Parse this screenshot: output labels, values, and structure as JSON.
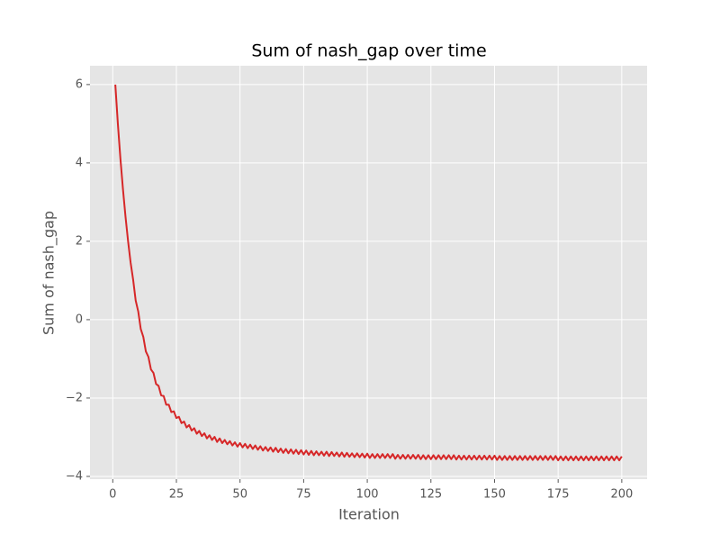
{
  "chart_data": {
    "type": "line",
    "title": "Sum of nash_gap over time",
    "x_label": "Iteration",
    "y_label": "Sum of nash_gap",
    "color": "#d62728",
    "grid": true,
    "xlim": [
      -8.95,
      209.95
    ],
    "ylim": [
      -4.07,
      6.48
    ],
    "xticks": [
      0,
      25,
      50,
      75,
      100,
      125,
      150,
      175,
      200
    ],
    "yticks": [
      {
        "value": -4,
        "label": "−4"
      },
      {
        "value": -2,
        "label": "−2"
      },
      0,
      2,
      4,
      6
    ],
    "x": [
      1,
      2,
      3,
      4,
      5,
      6,
      7,
      8,
      9,
      10,
      11,
      12,
      13,
      14,
      15,
      16,
      17,
      18,
      19,
      20,
      21,
      22,
      23,
      24,
      25,
      26,
      27,
      28,
      29,
      30,
      31,
      32,
      33,
      34,
      35,
      36,
      37,
      38,
      39,
      40,
      41,
      42,
      43,
      44,
      45,
      46,
      47,
      48,
      49,
      50,
      51,
      52,
      53,
      54,
      55,
      56,
      57,
      58,
      59,
      60,
      61,
      62,
      63,
      64,
      65,
      66,
      67,
      68,
      69,
      70,
      71,
      72,
      73,
      74,
      75,
      76,
      77,
      78,
      79,
      80,
      81,
      82,
      83,
      84,
      85,
      86,
      87,
      88,
      89,
      90,
      91,
      92,
      93,
      94,
      95,
      96,
      97,
      98,
      99,
      100,
      101,
      102,
      103,
      104,
      105,
      106,
      107,
      108,
      109,
      110,
      111,
      112,
      113,
      114,
      115,
      116,
      117,
      118,
      119,
      120,
      121,
      122,
      123,
      124,
      125,
      126,
      127,
      128,
      129,
      130,
      131,
      132,
      133,
      134,
      135,
      136,
      137,
      138,
      139,
      140,
      141,
      142,
      143,
      144,
      145,
      146,
      147,
      148,
      149,
      150,
      151,
      152,
      153,
      154,
      155,
      156,
      157,
      158,
      159,
      160,
      161,
      162,
      163,
      164,
      165,
      166,
      167,
      168,
      169,
      170,
      171,
      172,
      173,
      174,
      175,
      176,
      177,
      178,
      179,
      180,
      181,
      182,
      183,
      184,
      185,
      186,
      187,
      188,
      189,
      190,
      191,
      192,
      193,
      194,
      195,
      196,
      197,
      198,
      199,
      200
    ],
    "values": [
      6.0,
      5.0,
      4.11,
      3.33,
      2.63,
      2.01,
      1.46,
      1.02,
      0.49,
      0.21,
      -0.24,
      -0.44,
      -0.81,
      -0.95,
      -1.27,
      -1.36,
      -1.64,
      -1.69,
      -1.93,
      -1.95,
      -2.17,
      -2.17,
      -2.36,
      -2.34,
      -2.51,
      -2.48,
      -2.64,
      -2.6,
      -2.75,
      -2.69,
      -2.83,
      -2.77,
      -2.91,
      -2.84,
      -2.97,
      -2.9,
      -3.03,
      -2.95,
      -3.07,
      -2.99,
      -3.12,
      -3.03,
      -3.15,
      -3.07,
      -3.18,
      -3.1,
      -3.21,
      -3.13,
      -3.24,
      -3.15,
      -3.26,
      -3.17,
      -3.28,
      -3.19,
      -3.3,
      -3.21,
      -3.32,
      -3.23,
      -3.34,
      -3.25,
      -3.35,
      -3.26,
      -3.37,
      -3.27,
      -3.38,
      -3.29,
      -3.4,
      -3.3,
      -3.41,
      -3.31,
      -3.42,
      -3.32,
      -3.43,
      -3.33,
      -3.44,
      -3.34,
      -3.45,
      -3.35,
      -3.46,
      -3.36,
      -3.46,
      -3.37,
      -3.47,
      -3.37,
      -3.48,
      -3.38,
      -3.48,
      -3.39,
      -3.49,
      -3.39,
      -3.5,
      -3.4,
      -3.5,
      -3.41,
      -3.51,
      -3.41,
      -3.51,
      -3.42,
      -3.52,
      -3.42,
      -3.53,
      -3.43,
      -3.53,
      -3.43,
      -3.53,
      -3.43,
      -3.53,
      -3.43,
      -3.53,
      -3.43,
      -3.55,
      -3.45,
      -3.55,
      -3.45,
      -3.55,
      -3.45,
      -3.55,
      -3.45,
      -3.55,
      -3.45,
      -3.56,
      -3.46,
      -3.56,
      -3.46,
      -3.56,
      -3.46,
      -3.56,
      -3.46,
      -3.56,
      -3.46,
      -3.56,
      -3.46,
      -3.56,
      -3.46,
      -3.57,
      -3.47,
      -3.57,
      -3.47,
      -3.57,
      -3.47,
      -3.57,
      -3.47,
      -3.57,
      -3.47,
      -3.57,
      -3.47,
      -3.57,
      -3.47,
      -3.57,
      -3.47,
      -3.58,
      -3.48,
      -3.58,
      -3.48,
      -3.58,
      -3.48,
      -3.58,
      -3.48,
      -3.58,
      -3.48,
      -3.58,
      -3.48,
      -3.58,
      -3.48,
      -3.58,
      -3.48,
      -3.58,
      -3.48,
      -3.58,
      -3.48,
      -3.58,
      -3.48,
      -3.58,
      -3.48,
      -3.59,
      -3.49,
      -3.59,
      -3.49,
      -3.59,
      -3.49,
      -3.59,
      -3.49,
      -3.59,
      -3.49,
      -3.59,
      -3.49,
      -3.59,
      -3.49,
      -3.59,
      -3.49,
      -3.59,
      -3.49,
      -3.59,
      -3.49,
      -3.59,
      -3.49,
      -3.59,
      -3.49,
      -3.59,
      -3.49
    ]
  }
}
